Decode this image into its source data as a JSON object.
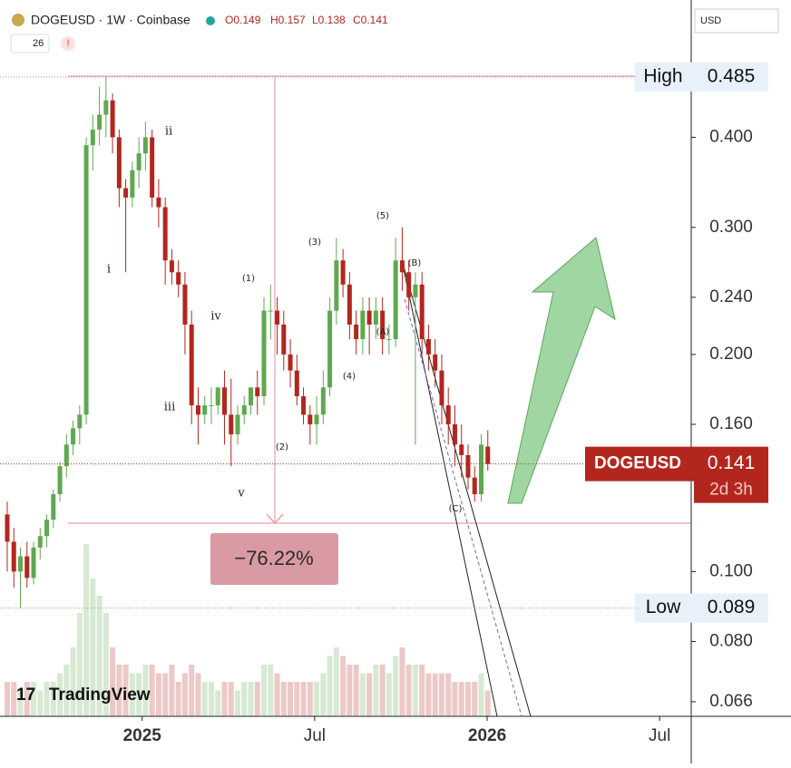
{
  "chart_data": {
    "type": "candlestick",
    "header": {
      "symbol": "DOGEUSD · 1W · Coinbase",
      "ohlc": [
        "O0.149",
        "H0.157",
        "L0.138",
        "C0.141"
      ],
      "indicators": "26",
      "currency": "USD",
      "watermark": "TradingView"
    },
    "x": [
      0,
      1,
      2,
      3,
      4,
      5,
      6,
      7,
      8,
      9,
      10,
      11,
      12,
      13,
      14,
      15,
      16,
      17,
      18,
      19,
      20,
      21,
      22,
      23,
      24,
      25,
      26,
      27,
      28,
      29,
      30,
      31,
      32,
      33,
      34,
      35,
      36,
      37,
      38,
      39,
      40,
      41,
      42,
      43,
      44,
      45,
      46,
      47,
      48,
      49,
      50,
      51,
      52,
      53,
      54,
      55,
      56,
      57,
      58,
      59,
      60,
      61,
      62,
      63,
      64,
      65,
      66,
      67,
      68,
      69,
      70,
      71,
      72,
      73
    ],
    "open": [
      0.12,
      0.11,
      0.1,
      0.105,
      0.098,
      0.108,
      0.112,
      0.118,
      0.128,
      0.14,
      0.15,
      0.158,
      0.165,
      0.39,
      0.41,
      0.43,
      0.45,
      0.4,
      0.34,
      0.33,
      0.36,
      0.38,
      0.4,
      0.33,
      0.32,
      0.27,
      0.26,
      0.25,
      0.22,
      0.17,
      0.165,
      0.17,
      0.17,
      0.18,
      0.165,
      0.155,
      0.165,
      0.17,
      0.18,
      0.175,
      0.23,
      0.23,
      0.22,
      0.2,
      0.19,
      0.175,
      0.165,
      0.16,
      0.165,
      0.18,
      0.23,
      0.27,
      0.25,
      0.22,
      0.21,
      0.23,
      0.22,
      0.23,
      0.21,
      0.21,
      0.27,
      0.26,
      0.24,
      0.25,
      0.21,
      0.2,
      0.19,
      0.17,
      0.16,
      0.15,
      0.145,
      0.135,
      0.128,
      0.149
    ],
    "high": [
      0.125,
      0.115,
      0.108,
      0.11,
      0.11,
      0.115,
      0.12,
      0.13,
      0.142,
      0.155,
      0.162,
      0.17,
      0.4,
      0.43,
      0.47,
      0.485,
      0.46,
      0.41,
      0.35,
      0.37,
      0.4,
      0.42,
      0.41,
      0.35,
      0.33,
      0.28,
      0.27,
      0.26,
      0.23,
      0.18,
      0.175,
      0.18,
      0.18,
      0.19,
      0.185,
      0.17,
      0.175,
      0.18,
      0.19,
      0.24,
      0.25,
      0.24,
      0.23,
      0.21,
      0.2,
      0.18,
      0.17,
      0.175,
      0.19,
      0.24,
      0.29,
      0.28,
      0.26,
      0.23,
      0.24,
      0.24,
      0.24,
      0.24,
      0.22,
      0.29,
      0.3,
      0.27,
      0.26,
      0.26,
      0.22,
      0.21,
      0.2,
      0.18,
      0.17,
      0.16,
      0.15,
      0.14,
      0.155,
      0.157
    ],
    "low": [
      0.1,
      0.095,
      0.089,
      0.095,
      0.096,
      0.104,
      0.108,
      0.115,
      0.125,
      0.135,
      0.145,
      0.15,
      0.16,
      0.36,
      0.39,
      0.4,
      0.38,
      0.32,
      0.26,
      0.32,
      0.34,
      0.36,
      0.32,
      0.3,
      0.25,
      0.25,
      0.24,
      0.2,
      0.16,
      0.15,
      0.16,
      0.16,
      0.165,
      0.15,
      0.14,
      0.15,
      0.16,
      0.165,
      0.165,
      0.17,
      0.21,
      0.2,
      0.19,
      0.18,
      0.17,
      0.16,
      0.15,
      0.15,
      0.16,
      0.175,
      0.22,
      0.24,
      0.21,
      0.2,
      0.2,
      0.2,
      0.21,
      0.2,
      0.2,
      0.205,
      0.245,
      0.23,
      0.15,
      0.2,
      0.19,
      0.18,
      0.16,
      0.15,
      0.14,
      0.135,
      0.13,
      0.125,
      0.125,
      0.138
    ],
    "close": [
      0.11,
      0.1,
      0.105,
      0.098,
      0.108,
      0.112,
      0.118,
      0.128,
      0.14,
      0.15,
      0.158,
      0.165,
      0.39,
      0.41,
      0.43,
      0.45,
      0.4,
      0.34,
      0.33,
      0.36,
      0.38,
      0.4,
      0.33,
      0.32,
      0.27,
      0.26,
      0.25,
      0.22,
      0.17,
      0.165,
      0.17,
      0.17,
      0.18,
      0.165,
      0.155,
      0.165,
      0.17,
      0.18,
      0.175,
      0.23,
      0.23,
      0.22,
      0.2,
      0.19,
      0.175,
      0.165,
      0.16,
      0.165,
      0.18,
      0.23,
      0.27,
      0.25,
      0.22,
      0.21,
      0.23,
      0.22,
      0.23,
      0.21,
      0.21,
      0.27,
      0.26,
      0.24,
      0.25,
      0.21,
      0.2,
      0.19,
      0.17,
      0.16,
      0.15,
      0.145,
      0.135,
      0.128,
      0.15,
      0.141
    ],
    "volume": [
      2,
      2,
      1.5,
      2,
      2,
      1.5,
      2,
      2,
      2.5,
      3,
      4,
      6,
      10,
      8,
      7,
      6,
      4,
      3,
      3,
      2.5,
      2.5,
      3,
      3,
      2.5,
      2.5,
      3,
      2,
      2.5,
      3,
      2.5,
      2,
      2,
      1.5,
      2,
      2,
      1.5,
      2,
      2,
      2,
      3,
      3,
      2.5,
      2,
      2,
      2,
      2,
      2,
      2,
      2.5,
      3.5,
      4,
      3.5,
      3,
      3,
      2.5,
      2.5,
      3,
      3,
      2.5,
      3.5,
      4,
      3,
      3,
      3,
      2.5,
      2.5,
      2.5,
      2.5,
      2,
      2,
      2,
      2,
      2.5,
      1.5
    ],
    "up_color": "#5fa84f",
    "down_color": "#b3261e",
    "log_scale": true,
    "xlim": [
      -1.1,
      103.9
    ],
    "ylim": [
      0.063,
      0.62
    ],
    "xticks": [
      {
        "value": 20.5,
        "label": "2025"
      },
      {
        "value": 46.7,
        "label": "Jul"
      },
      {
        "value": 72.9,
        "label": "2026"
      },
      {
        "value": 99.1,
        "label": "Jul"
      }
    ],
    "yticks": [
      {
        "value": 0.4,
        "label": "0.400"
      },
      {
        "value": 0.3,
        "label": "0.300"
      },
      {
        "value": 0.24,
        "label": "0.240"
      },
      {
        "value": 0.2,
        "label": "0.200"
      },
      {
        "value": 0.16,
        "label": "0.160"
      },
      {
        "value": 0.1,
        "label": "0.100"
      },
      {
        "value": 0.08,
        "label": "0.080"
      },
      {
        "value": 0.066,
        "label": "0.066"
      }
    ],
    "high_label": {
      "text": "High",
      "value": 0.485
    },
    "low_label": {
      "text": "Low",
      "value": 0.089
    },
    "last_label": {
      "symbol": "DOGEUSD",
      "value": 0.141,
      "countdown": "2d 3h"
    },
    "measure": "−76.22%",
    "waves": [
      "i",
      "ii",
      "iii",
      "iv",
      "v",
      "(1)",
      "(2)",
      "(3)",
      "(4)",
      "(5)",
      "(A)",
      "(B)",
      "(C)"
    ]
  }
}
